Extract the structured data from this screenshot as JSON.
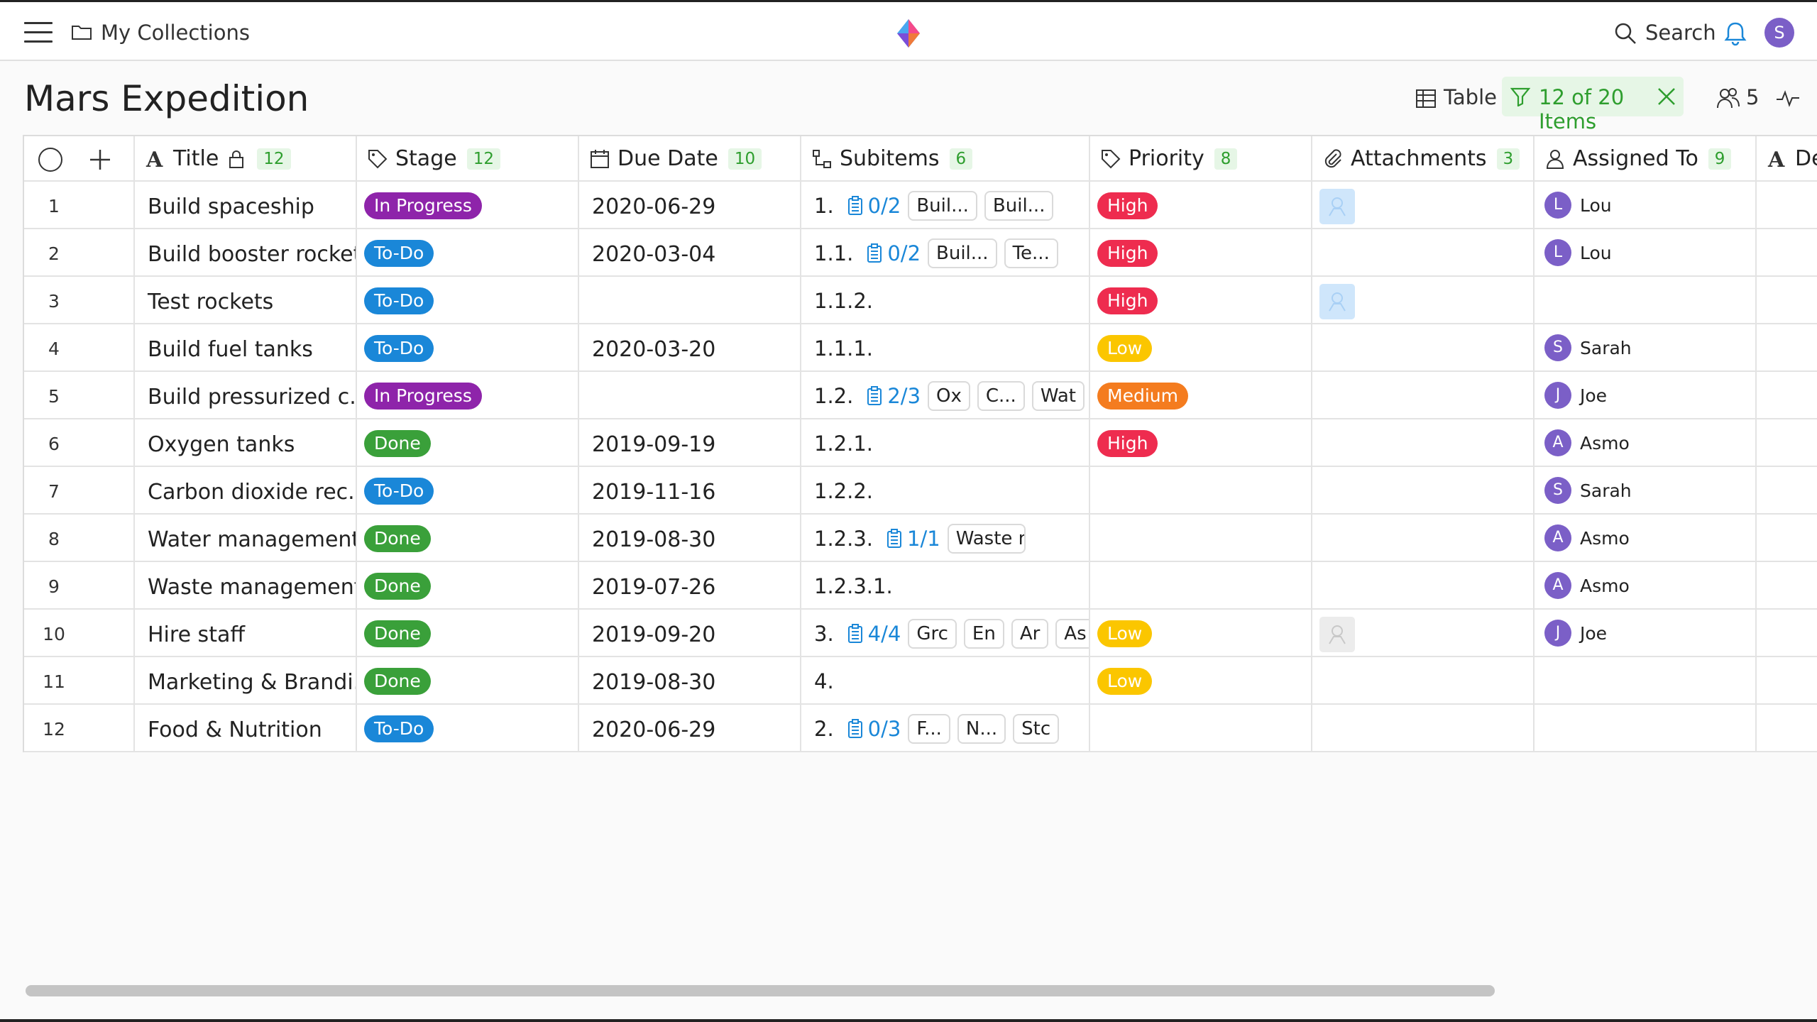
{
  "topbar": {
    "breadcrumb": "My Collections",
    "search_label": "Search",
    "user_initial": "S"
  },
  "header": {
    "title": "Mars Expedition",
    "view_label": "Table",
    "filter_label": "12 of 20 Items",
    "collaborators_count": "5"
  },
  "columns": {
    "title": {
      "label": "Title",
      "count": "12"
    },
    "stage": {
      "label": "Stage",
      "count": "12"
    },
    "due": {
      "label": "Due Date",
      "count": "10"
    },
    "subitems": {
      "label": "Subitems",
      "count": "6"
    },
    "priority": {
      "label": "Priority",
      "count": "8"
    },
    "attachments": {
      "label": "Attachments",
      "count": "3"
    },
    "assigned": {
      "label": "Assigned To",
      "count": "9"
    },
    "desc": {
      "label": "De"
    }
  },
  "rows": [
    {
      "num": "1",
      "title": "Build spaceship",
      "stage": "In Progress",
      "due": "2020-06-29",
      "sub_num": "1.",
      "sub_prog": "0/2",
      "chips": [
        "Buil...",
        "Buil..."
      ],
      "priority": "High",
      "attachment": "blue",
      "assignee": {
        "initial": "L",
        "name": "Lou"
      }
    },
    {
      "num": "2",
      "title": "Build booster rockets",
      "stage": "To-Do",
      "due": "2020-03-04",
      "sub_num": "1.1.",
      "sub_prog": "0/2",
      "chips": [
        "Buil...",
        "Te..."
      ],
      "priority": "High",
      "attachment": "",
      "assignee": {
        "initial": "L",
        "name": "Lou"
      }
    },
    {
      "num": "3",
      "title": "Test rockets",
      "stage": "To-Do",
      "due": "",
      "sub_num": "1.1.2.",
      "sub_prog": "",
      "chips": [],
      "priority": "High",
      "attachment": "blue",
      "assignee": {
        "initial": "",
        "name": ""
      }
    },
    {
      "num": "4",
      "title": "Build fuel tanks",
      "stage": "To-Do",
      "due": "2020-03-20",
      "sub_num": "1.1.1.",
      "sub_prog": "",
      "chips": [],
      "priority": "Low",
      "attachment": "",
      "assignee": {
        "initial": "S",
        "name": "Sarah"
      }
    },
    {
      "num": "5",
      "title": "Build pressurized c...",
      "stage": "In Progress",
      "due": "",
      "sub_num": "1.2.",
      "sub_prog": "2/3",
      "chips": [
        "Ox",
        "C...",
        "Wat"
      ],
      "priority": "Medium",
      "attachment": "",
      "assignee": {
        "initial": "J",
        "name": "Joe"
      }
    },
    {
      "num": "6",
      "title": "Oxygen tanks",
      "stage": "Done",
      "due": "2019-09-19",
      "sub_num": "1.2.1.",
      "sub_prog": "",
      "chips": [],
      "priority": "High",
      "attachment": "",
      "assignee": {
        "initial": "A",
        "name": "Asmo"
      }
    },
    {
      "num": "7",
      "title": "Carbon dioxide rec...",
      "stage": "To-Do",
      "due": "2019-11-16",
      "sub_num": "1.2.2.",
      "sub_prog": "",
      "chips": [],
      "priority": "",
      "attachment": "",
      "assignee": {
        "initial": "S",
        "name": "Sarah"
      }
    },
    {
      "num": "8",
      "title": "Water management",
      "stage": "Done",
      "due": "2019-08-30",
      "sub_num": "1.2.3.",
      "sub_prog": "1/1",
      "chips": [
        "Waste ma..."
      ],
      "priority": "",
      "attachment": "",
      "assignee": {
        "initial": "A",
        "name": "Asmo"
      }
    },
    {
      "num": "9",
      "title": "Waste management",
      "stage": "Done",
      "due": "2019-07-26",
      "sub_num": "1.2.3.1.",
      "sub_prog": "",
      "chips": [],
      "priority": "",
      "attachment": "",
      "assignee": {
        "initial": "A",
        "name": "Asmo"
      }
    },
    {
      "num": "10",
      "title": "Hire staff",
      "stage": "Done",
      "due": "2019-09-20",
      "sub_num": "3.",
      "sub_prog": "4/4",
      "chips": [
        "Grc",
        "En",
        "Ar",
        "As"
      ],
      "priority": "Low",
      "attachment": "grey",
      "assignee": {
        "initial": "J",
        "name": "Joe"
      }
    },
    {
      "num": "11",
      "title": "Marketing & Brandi...",
      "stage": "Done",
      "due": "2019-08-30",
      "sub_num": "4.",
      "sub_prog": "",
      "chips": [],
      "priority": "Low",
      "attachment": "",
      "assignee": {
        "initial": "",
        "name": ""
      }
    },
    {
      "num": "12",
      "title": "Food & Nutrition",
      "stage": "To-Do",
      "due": "2020-06-29",
      "sub_num": "2.",
      "sub_prog": "0/3",
      "chips": [
        "F...",
        "N...",
        "Stc"
      ],
      "priority": "",
      "attachment": "",
      "assignee": {
        "initial": "",
        "name": ""
      }
    }
  ],
  "colors": {
    "accent_green": "#2e9e2e",
    "stage_in_progress": "#8e24aa",
    "stage_todo": "#1a87d8",
    "stage_done": "#3aa03a",
    "priority_high": "#ee2c4f",
    "priority_low": "#fbc600",
    "priority_medium": "#f47c1f",
    "avatar": "#7b5fc7"
  }
}
